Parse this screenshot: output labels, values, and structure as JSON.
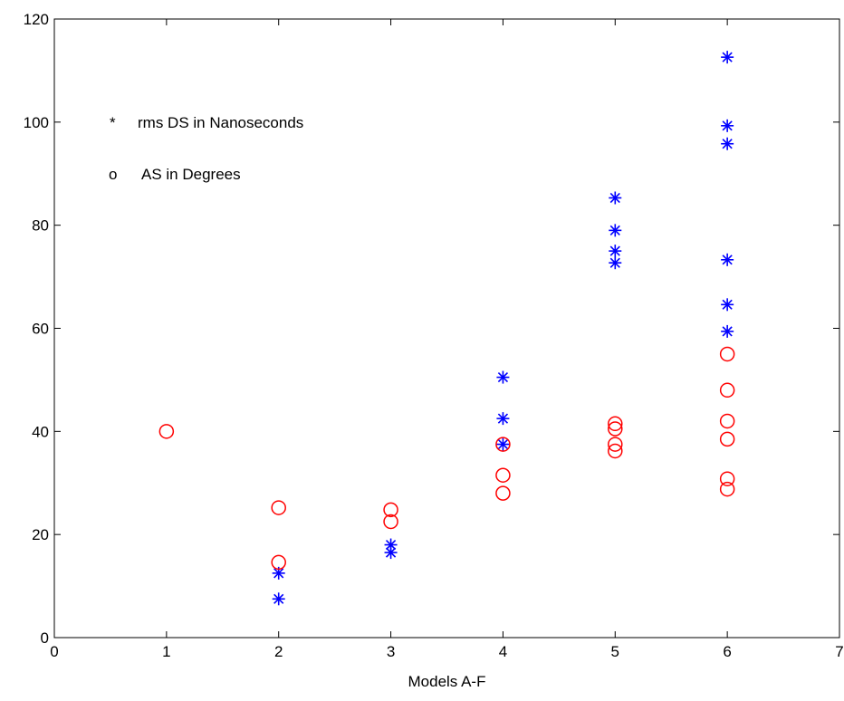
{
  "chart_data": {
    "type": "scatter",
    "title": "",
    "xlabel": "Models A-F",
    "ylabel": "",
    "xlim": [
      0,
      7
    ],
    "ylim": [
      0,
      120
    ],
    "xticks": [
      0,
      1,
      2,
      3,
      4,
      5,
      6,
      7
    ],
    "yticks": [
      0,
      20,
      40,
      60,
      80,
      100,
      120
    ],
    "grid": false,
    "legend_position": "top-left",
    "series": [
      {
        "name": "rms DS in Nanoseconds",
        "marker": "*",
        "marker_label": "*",
        "color": "#0000ff",
        "points": [
          {
            "x": 2,
            "y": 12.5
          },
          {
            "x": 2,
            "y": 7.5
          },
          {
            "x": 3,
            "y": 18
          },
          {
            "x": 3,
            "y": 16.5
          },
          {
            "x": 4,
            "y": 50.5
          },
          {
            "x": 4,
            "y": 42.5
          },
          {
            "x": 4,
            "y": 37.5
          },
          {
            "x": 5,
            "y": 85.3
          },
          {
            "x": 5,
            "y": 79
          },
          {
            "x": 5,
            "y": 75
          },
          {
            "x": 5,
            "y": 72.7
          },
          {
            "x": 6,
            "y": 112.6
          },
          {
            "x": 6,
            "y": 99.3
          },
          {
            "x": 6,
            "y": 95.8
          },
          {
            "x": 6,
            "y": 73.3
          },
          {
            "x": 6,
            "y": 64.6
          },
          {
            "x": 6,
            "y": 59.4
          }
        ]
      },
      {
        "name": "AS in Degrees",
        "marker": "o",
        "marker_label": "o",
        "color": "#ff0000",
        "points": [
          {
            "x": 1,
            "y": 40
          },
          {
            "x": 2,
            "y": 25.2
          },
          {
            "x": 2,
            "y": 14.6
          },
          {
            "x": 3,
            "y": 24.8
          },
          {
            "x": 3,
            "y": 22.5
          },
          {
            "x": 4,
            "y": 37.5
          },
          {
            "x": 4,
            "y": 31.5
          },
          {
            "x": 4,
            "y": 28
          },
          {
            "x": 5,
            "y": 41.5
          },
          {
            "x": 5,
            "y": 40.5
          },
          {
            "x": 5,
            "y": 37.5
          },
          {
            "x": 5,
            "y": 36.2
          },
          {
            "x": 6,
            "y": 55
          },
          {
            "x": 6,
            "y": 48
          },
          {
            "x": 6,
            "y": 42
          },
          {
            "x": 6,
            "y": 38.5
          },
          {
            "x": 6,
            "y": 30.8
          },
          {
            "x": 6,
            "y": 28.8
          }
        ]
      }
    ]
  }
}
